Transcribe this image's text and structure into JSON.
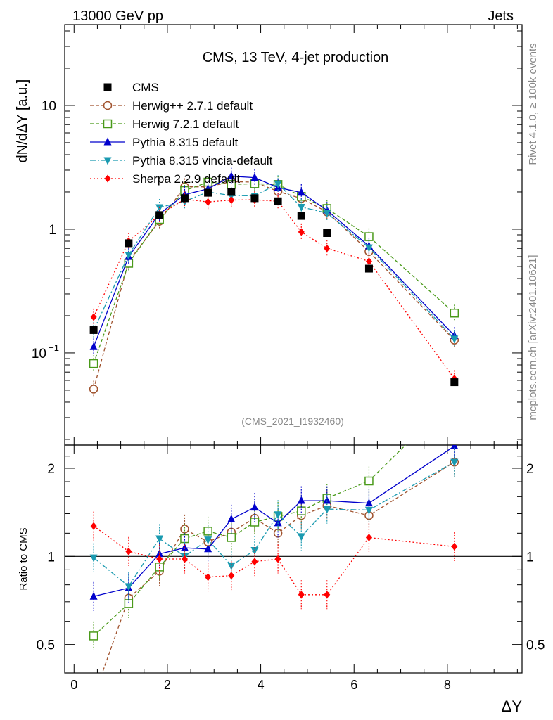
{
  "header": {
    "left": "13000 GeV pp",
    "right": "Jets"
  },
  "side": {
    "rivet": "Rivet 4.1.0, ≥ 100k events",
    "mcplots": "mcplots.cern.ch [arXiv:2401.10621]"
  },
  "chart_data": {
    "type": "scatter",
    "title": "CMS, 13 TeV, 4-jet production",
    "analysis_label": "(CMS_2021_I1932460)",
    "xlabel": "ΔY",
    "ylabel_top": "dN/dΔY [a.u.]",
    "ylabel_bottom": "Ratio to CMS",
    "xlim": [
      -0.2,
      9.6
    ],
    "ylim_top": [
      0.018,
      45
    ],
    "ylog_top": true,
    "ylim_bottom": [
      0.4,
      2.4
    ],
    "ylog_bottom": true,
    "x_ticks": [
      "0",
      "2",
      "4",
      "6",
      "8"
    ],
    "y_ticks_top": [
      "10^-1",
      "1",
      "10"
    ],
    "y_ticks_bottom": [
      "0.5",
      "1",
      "2"
    ],
    "x": [
      0.42,
      1.17,
      1.83,
      2.37,
      2.87,
      3.37,
      3.87,
      4.37,
      4.87,
      5.42,
      6.32,
      8.15
    ],
    "series": [
      {
        "name": "CMS",
        "color": "#000000",
        "marker": "square-filled",
        "line": "none",
        "values": [
          0.153,
          0.77,
          1.3,
          1.78,
          1.97,
          2.0,
          1.78,
          1.68,
          1.28,
          0.93,
          0.48,
          0.058
        ],
        "ratio": [
          1.0,
          1.0,
          1.0,
          1.0,
          1.0,
          1.0,
          1.0,
          1.0,
          1.0,
          1.0,
          1.0,
          1.0
        ]
      },
      {
        "name": "Herwig++ 2.7.1 default",
        "color": "#a0522d",
        "marker": "circle-open",
        "line": "dashed",
        "values": [
          0.051,
          0.55,
          1.16,
          2.2,
          2.2,
          2.42,
          2.4,
          2.02,
          1.77,
          1.38,
          0.66,
          0.127
        ],
        "ratio": [
          0.33,
          0.72,
          0.89,
          1.24,
          1.12,
          1.21,
          1.35,
          1.2,
          1.38,
          1.49,
          1.38,
          2.1
        ]
      },
      {
        "name": "Herwig 7.2.1 default",
        "color": "#4a9a1a",
        "marker": "square-open",
        "line": "dashed",
        "values": [
          0.082,
          0.53,
          1.2,
          2.05,
          2.4,
          2.3,
          2.33,
          2.3,
          1.84,
          1.47,
          0.87,
          0.21
        ],
        "ratio": [
          0.535,
          0.69,
          0.92,
          1.15,
          1.22,
          1.16,
          1.31,
          1.37,
          1.43,
          1.58,
          1.81,
          3.5
        ]
      },
      {
        "name": "Pythia 8.315 default",
        "color": "#0000cc",
        "marker": "triangle-up-filled",
        "line": "solid",
        "values": [
          0.112,
          0.6,
          1.33,
          1.9,
          2.12,
          2.68,
          2.61,
          2.17,
          1.98,
          1.42,
          0.73,
          0.138
        ],
        "ratio": [
          0.73,
          0.78,
          1.02,
          1.07,
          1.06,
          1.34,
          1.47,
          1.3,
          1.55,
          1.55,
          1.52,
          2.38
        ]
      },
      {
        "name": "Pythia 8.315 vincia-default",
        "color": "#1a9ab0",
        "marker": "triangle-down-filled",
        "line": "dashdot",
        "values": [
          0.152,
          0.62,
          1.5,
          1.68,
          2.0,
          1.87,
          1.86,
          2.33,
          1.51,
          1.35,
          0.71,
          0.13
        ],
        "ratio": [
          0.99,
          0.79,
          1.15,
          1.0,
          1.14,
          0.93,
          1.05,
          1.39,
          1.17,
          1.45,
          1.44,
          2.1
        ]
      },
      {
        "name": "Sherpa 2.2.9 default",
        "color": "#ff0000",
        "marker": "diamond-filled",
        "line": "dotted",
        "values": [
          0.195,
          0.8,
          1.3,
          1.75,
          1.66,
          1.72,
          1.73,
          1.68,
          0.95,
          0.7,
          0.55,
          0.062
        ],
        "ratio": [
          1.27,
          1.04,
          0.98,
          0.98,
          0.85,
          0.86,
          0.96,
          0.98,
          0.74,
          0.74,
          1.16,
          1.08
        ]
      }
    ]
  }
}
